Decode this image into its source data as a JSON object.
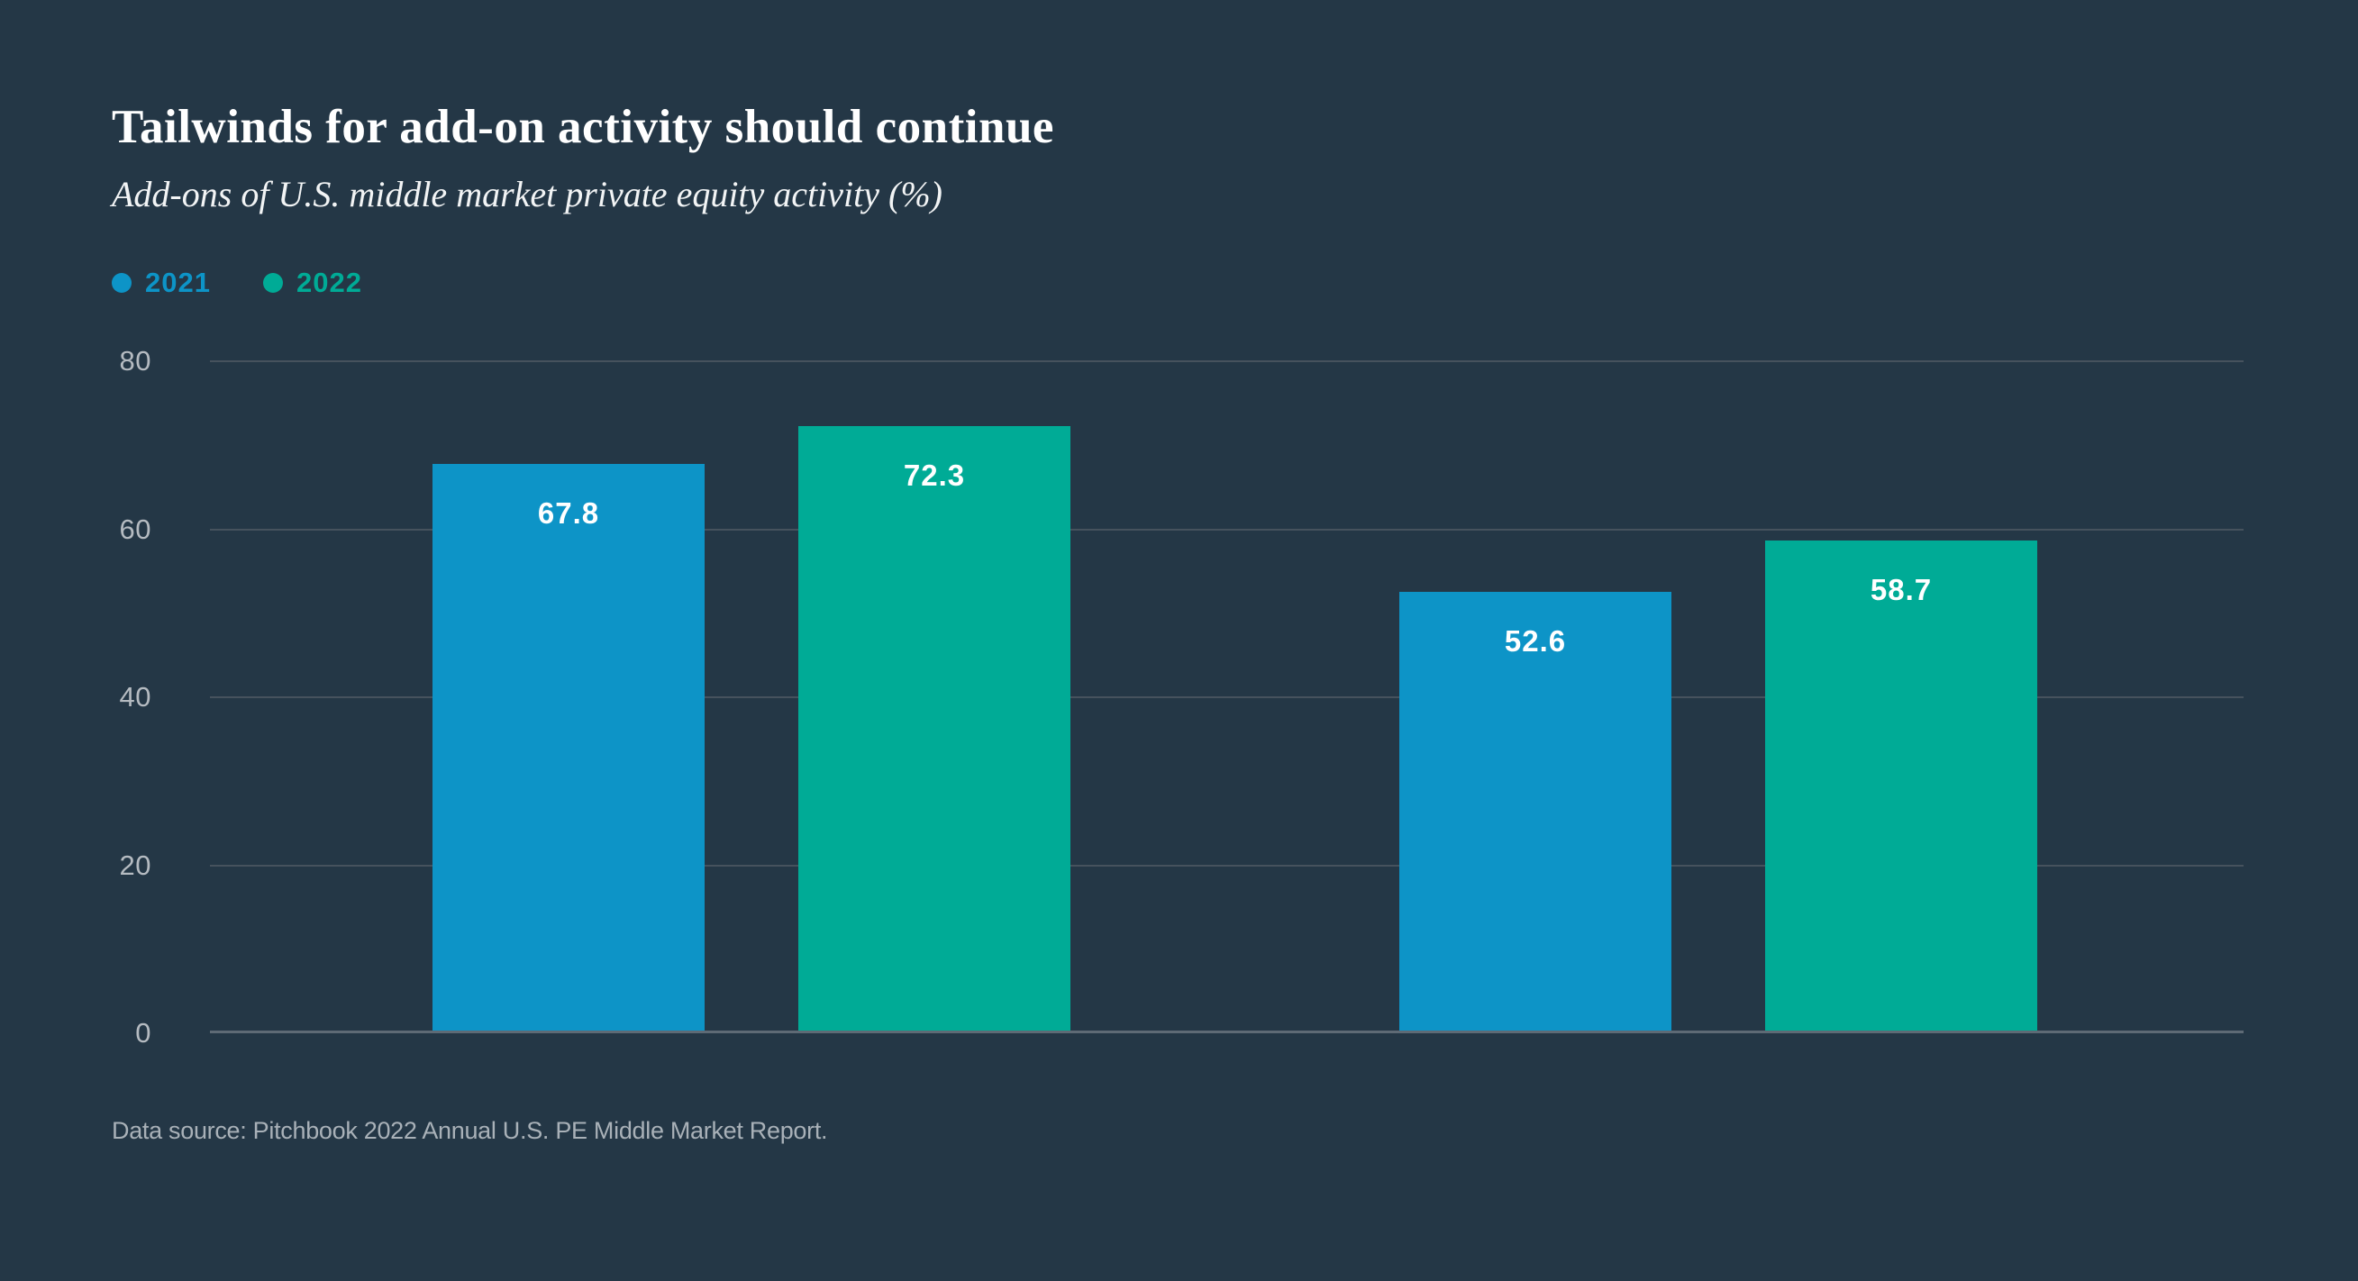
{
  "header": {
    "title": "Tailwinds for add-on activity should continue",
    "subtitle": "Add-ons of U.S. middle market private equity activity (%)"
  },
  "legend": [
    {
      "label": "2021",
      "color": "#0d94c7"
    },
    {
      "label": "2022",
      "color": "#00ab96"
    }
  ],
  "footer": {
    "source": "Data source: Pitchbook 2022 Annual U.S. PE Middle Market Report."
  },
  "colors": {
    "background": "#243746",
    "grid_line": "#46525d",
    "baseline": "#5e6a75",
    "tick_label": "#b5bbc1",
    "title_text": "#ffffff",
    "value_label": "#ffffff",
    "source_text": "#a9b1b8",
    "series_blue": "#0d94c7",
    "series_teal": "#00ab96"
  },
  "chart_data": {
    "type": "bar",
    "title": "Tailwinds for add-on activity should continue",
    "subtitle": "Add-ons of U.S. middle market private equity activity (%)",
    "categories": [
      "",
      ""
    ],
    "series": [
      {
        "name": "2021",
        "color": "#0d94c7",
        "values": [
          67.8,
          52.6
        ]
      },
      {
        "name": "2022",
        "color": "#00ab96",
        "values": [
          72.3,
          58.7
        ]
      }
    ],
    "value_labels": [
      "67.8",
      "72.3",
      "52.6",
      "58.7"
    ],
    "ylim": [
      0,
      80
    ],
    "yticks": [
      0,
      20,
      40,
      60,
      80
    ],
    "grid": "horizontal",
    "legend_position": "top-left",
    "value_label_position": "inside-top",
    "x_axis_labels": "none",
    "source": "Data source: Pitchbook 2022 Annual U.S. PE Middle Market Report."
  }
}
